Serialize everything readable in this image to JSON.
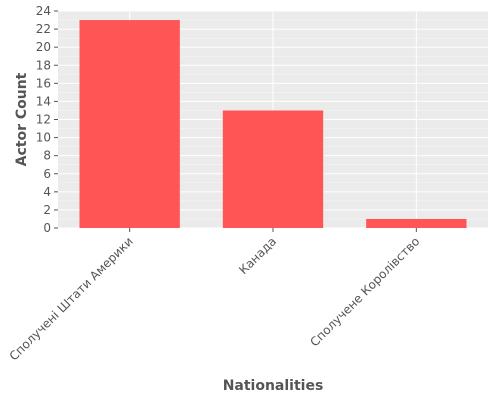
{
  "chart_data": {
    "type": "bar",
    "title": "",
    "xlabel": "Nationalities",
    "ylabel": "Actor Count",
    "categories": [
      "Сполучені Штати Америки",
      "Канада",
      "Сполучене Королівство"
    ],
    "values": [
      23,
      13,
      1
    ],
    "ylim": [
      0,
      24
    ],
    "yticks": [
      0,
      2,
      4,
      6,
      8,
      10,
      12,
      14,
      16,
      18,
      20,
      22,
      24
    ],
    "grid": true,
    "legend": "none",
    "colors": {
      "bar": "#ff5555",
      "plot_background": "#ebebeb",
      "grid": "#ffffff",
      "text": "#555555"
    }
  }
}
